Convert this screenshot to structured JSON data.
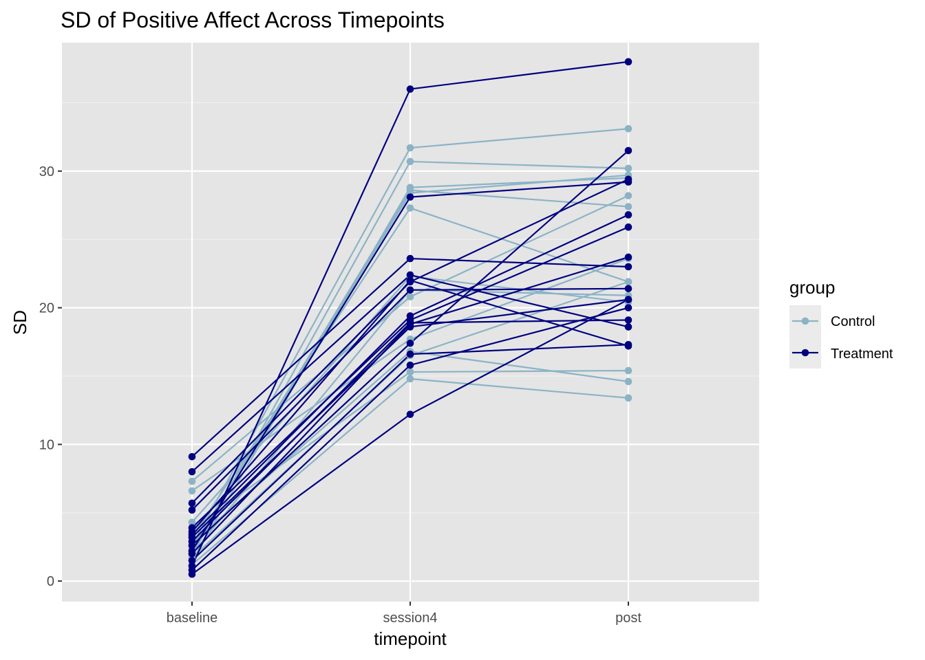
{
  "chart_data": {
    "type": "line",
    "title": "SD of Positive Affect Across Timepoints",
    "xlabel": "timepoint",
    "ylabel": "SD",
    "categories": [
      "baseline",
      "session4",
      "post"
    ],
    "ylim": [
      -1.5,
      39.4
    ],
    "yticks": [
      0,
      10,
      20,
      30
    ],
    "grid": true,
    "legend": {
      "title": "group",
      "placement": "right",
      "entries": [
        {
          "name": "Control",
          "color": "#8bb3c5"
        },
        {
          "name": "Treatment",
          "color": "#000080"
        }
      ]
    },
    "series": [
      {
        "group": "Control",
        "values": [
          2.6,
          31.7,
          33.1
        ]
      },
      {
        "group": "Control",
        "values": [
          1.9,
          30.7,
          30.2
        ]
      },
      {
        "group": "Control",
        "values": [
          1.5,
          28.8,
          29.5
        ]
      },
      {
        "group": "Control",
        "values": [
          2.4,
          28.6,
          27.4
        ]
      },
      {
        "group": "Control",
        "values": [
          3.2,
          27.3,
          21.9
        ]
      },
      {
        "group": "Control",
        "values": [
          4.3,
          22.3,
          20.4
        ]
      },
      {
        "group": "Control",
        "values": [
          2.0,
          21.3,
          20.9
        ]
      },
      {
        "group": "Control",
        "values": [
          7.3,
          20.8,
          28.2
        ]
      },
      {
        "group": "Control",
        "values": [
          6.6,
          17.7,
          23.6
        ]
      },
      {
        "group": "Control",
        "values": [
          2.8,
          16.8,
          14.6
        ]
      },
      {
        "group": "Control",
        "values": [
          1.7,
          16.5,
          21.9
        ]
      },
      {
        "group": "Control",
        "values": [
          3.8,
          15.3,
          15.4
        ]
      },
      {
        "group": "Control",
        "values": [
          1.2,
          14.8,
          13.4
        ]
      },
      {
        "group": "Control",
        "values": [
          2.2,
          28.4,
          29.7
        ]
      },
      {
        "group": "Treatment",
        "values": [
          1.1,
          36.0,
          38.0
        ]
      },
      {
        "group": "Treatment",
        "values": [
          2.2,
          28.1,
          29.2
        ]
      },
      {
        "group": "Treatment",
        "values": [
          9.1,
          23.6,
          23.0
        ]
      },
      {
        "group": "Treatment",
        "values": [
          8.0,
          22.4,
          18.6
        ]
      },
      {
        "group": "Treatment",
        "values": [
          5.7,
          21.9,
          29.4
        ]
      },
      {
        "group": "Treatment",
        "values": [
          5.2,
          21.3,
          21.4
        ]
      },
      {
        "group": "Treatment",
        "values": [
          3.4,
          19.4,
          26.8
        ]
      },
      {
        "group": "Treatment",
        "values": [
          3.9,
          19.1,
          25.9
        ]
      },
      {
        "group": "Treatment",
        "values": [
          2.0,
          18.8,
          23.7
        ]
      },
      {
        "group": "Treatment",
        "values": [
          3.2,
          18.6,
          20.6
        ]
      },
      {
        "group": "Treatment",
        "values": [
          2.6,
          17.4,
          31.5
        ]
      },
      {
        "group": "Treatment",
        "values": [
          1.5,
          16.6,
          17.3
        ]
      },
      {
        "group": "Treatment",
        "values": [
          0.8,
          15.8,
          20.0
        ]
      },
      {
        "group": "Treatment",
        "values": [
          0.5,
          12.2,
          20.6
        ]
      },
      {
        "group": "Treatment",
        "values": [
          3.6,
          22.0,
          17.2
        ]
      },
      {
        "group": "Treatment",
        "values": [
          2.9,
          18.9,
          19.1
        ]
      }
    ]
  }
}
